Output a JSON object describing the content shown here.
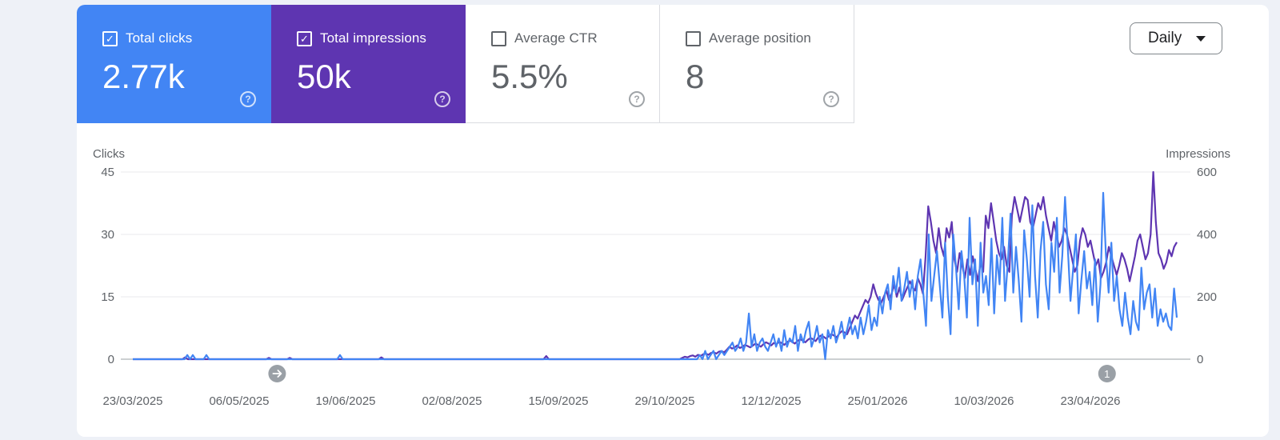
{
  "metrics": [
    {
      "label": "Total clicks",
      "value": "2.77k",
      "selected": true,
      "color": "#4285f4"
    },
    {
      "label": "Total impressions",
      "value": "50k",
      "selected": true,
      "color": "#5e35b1"
    },
    {
      "label": "Average CTR",
      "value": "5.5%",
      "selected": false
    },
    {
      "label": "Average position",
      "value": "8",
      "selected": false
    }
  ],
  "help_icon": "help-circle-icon",
  "granularity": {
    "label": "Daily",
    "icon": "caret-down-icon"
  },
  "markers": {
    "annotation_icon": "arrow-right-icon",
    "annotation_count": "1"
  },
  "chart_data": {
    "type": "line",
    "xlabel": "",
    "left_axis": {
      "label": "Clicks",
      "ticks": [
        45,
        30,
        15,
        0
      ],
      "ylim": [
        0,
        45
      ]
    },
    "right_axis": {
      "label": "Impressions",
      "ticks": [
        600,
        400,
        200,
        0
      ],
      "ylim": [
        0,
        600
      ]
    },
    "x_tick_labels": [
      "23/03/2025",
      "06/05/2025",
      "19/06/2025",
      "02/08/2025",
      "15/09/2025",
      "29/10/2025",
      "12/12/2025",
      "25/01/2026",
      "10/03/2026",
      "23/04/2026"
    ],
    "x_start": "2025-03-23",
    "x_end": "2026-05-31",
    "grid": true,
    "series": [
      {
        "name": "Clicks",
        "color": "#4285f4",
        "axis": "left",
        "values": [
          0,
          0,
          0,
          0,
          0,
          0,
          0,
          0,
          0,
          0,
          0,
          0,
          0,
          0,
          0,
          0,
          0,
          0,
          0,
          0,
          1,
          0,
          1,
          0,
          0,
          0,
          0,
          1,
          0,
          0,
          0,
          0,
          0,
          0,
          0,
          0,
          0,
          0,
          0,
          0,
          0,
          0,
          0,
          0,
          0,
          0,
          0,
          0,
          0,
          0,
          0,
          0,
          0,
          0,
          0,
          0,
          0,
          0,
          0,
          0,
          0,
          0,
          0,
          0,
          0,
          0,
          0,
          0,
          0,
          0,
          0,
          0,
          0,
          0,
          0,
          0,
          1,
          0,
          0,
          0,
          0,
          0,
          0,
          0,
          0,
          0,
          0,
          0,
          0,
          0,
          0,
          0,
          0,
          0,
          0,
          0,
          0,
          0,
          0,
          0,
          0,
          0,
          0,
          0,
          0,
          0,
          0,
          0,
          0,
          0,
          0,
          0,
          0,
          0,
          0,
          0,
          0,
          0,
          0,
          0,
          0,
          0,
          0,
          0,
          0,
          0,
          0,
          0,
          0,
          0,
          0,
          0,
          0,
          0,
          0,
          0,
          0,
          0,
          0,
          0,
          0,
          0,
          0,
          0,
          0,
          0,
          0,
          0,
          0,
          0,
          0,
          0,
          0,
          0,
          0,
          0,
          0,
          0,
          0,
          0,
          0,
          0,
          0,
          0,
          0,
          0,
          0,
          0,
          0,
          0,
          0,
          0,
          0,
          0,
          0,
          0,
          0,
          0,
          0,
          0,
          0,
          0,
          0,
          0,
          0,
          0,
          0,
          0,
          0,
          0,
          0,
          0,
          0,
          0,
          0,
          0,
          0,
          0,
          0,
          0,
          0,
          0,
          0,
          0,
          0,
          0,
          0,
          0,
          1,
          0,
          2,
          0,
          1,
          2,
          0,
          1,
          2,
          1,
          2,
          3,
          4,
          2,
          3,
          5,
          2,
          4,
          11,
          3,
          6,
          2,
          4,
          5,
          3,
          2,
          4,
          6,
          3,
          5,
          2,
          7,
          3,
          5,
          4,
          8,
          2,
          6,
          4,
          7,
          9,
          3,
          5,
          8,
          4,
          6,
          0,
          7,
          5,
          8,
          4,
          6,
          9,
          5,
          7,
          10,
          6,
          8,
          5,
          10,
          6,
          9,
          13,
          7,
          10,
          8,
          15,
          11,
          16,
          18,
          12,
          20,
          16,
          22,
          14,
          17,
          21,
          15,
          19,
          12,
          20,
          24,
          16,
          8,
          30,
          14,
          20,
          26,
          18,
          10,
          28,
          15,
          6,
          30,
          22,
          12,
          26,
          20,
          10,
          34,
          18,
          24,
          8,
          28,
          16,
          20,
          13,
          29,
          11,
          25,
          18,
          34,
          14,
          23,
          35,
          16,
          27,
          19,
          9,
          31,
          24,
          15,
          37,
          20,
          10,
          26,
          33,
          18,
          12,
          28,
          21,
          34,
          16,
          25,
          39,
          27,
          14,
          22,
          30,
          11,
          19,
          26,
          17,
          21,
          13,
          24,
          9,
          18,
          40,
          25,
          16,
          28,
          14,
          20,
          12,
          8,
          16,
          10,
          6,
          14,
          9,
          7,
          22,
          12,
          16,
          18,
          10,
          17,
          8,
          12,
          9,
          11,
          8,
          7,
          17,
          10
        ]
      },
      {
        "name": "Impressions",
        "color": "#5e35b1",
        "axis": "right",
        "values": [
          0,
          0,
          0,
          0,
          0,
          0,
          0,
          0,
          0,
          0,
          0,
          0,
          0,
          0,
          0,
          0,
          0,
          0,
          0,
          0,
          6,
          0,
          0,
          0,
          0,
          0,
          0,
          0,
          0,
          0,
          0,
          0,
          0,
          0,
          0,
          0,
          0,
          0,
          0,
          0,
          0,
          0,
          0,
          0,
          0,
          0,
          0,
          0,
          0,
          0,
          0,
          0,
          4,
          0,
          0,
          0,
          0,
          0,
          0,
          0,
          4,
          0,
          0,
          0,
          0,
          0,
          0,
          0,
          0,
          0,
          0,
          0,
          0,
          0,
          0,
          0,
          0,
          0,
          0,
          0,
          0,
          0,
          0,
          0,
          0,
          0,
          0,
          0,
          0,
          0,
          0,
          0,
          0,
          0,
          0,
          6,
          0,
          0,
          0,
          0,
          0,
          0,
          0,
          0,
          0,
          0,
          0,
          0,
          0,
          0,
          0,
          0,
          0,
          0,
          0,
          0,
          0,
          0,
          0,
          0,
          0,
          0,
          0,
          0,
          0,
          0,
          0,
          0,
          0,
          0,
          0,
          0,
          0,
          0,
          0,
          0,
          0,
          0,
          0,
          0,
          0,
          0,
          0,
          0,
          0,
          0,
          0,
          0,
          0,
          0,
          0,
          0,
          0,
          0,
          0,
          0,
          0,
          0,
          10,
          0,
          0,
          0,
          0,
          0,
          0,
          0,
          0,
          0,
          0,
          0,
          0,
          0,
          0,
          0,
          0,
          0,
          0,
          0,
          0,
          0,
          0,
          0,
          0,
          0,
          0,
          0,
          0,
          0,
          0,
          0,
          0,
          0,
          0,
          0,
          0,
          0,
          0,
          0,
          0,
          0,
          0,
          0,
          0,
          0,
          0,
          0,
          0,
          0,
          0,
          0,
          4,
          8,
          6,
          10,
          12,
          8,
          14,
          10,
          16,
          18,
          14,
          20,
          22,
          18,
          24,
          26,
          22,
          30,
          40,
          34,
          38,
          44,
          36,
          40,
          46,
          42,
          38,
          44,
          50,
          46,
          40,
          48,
          54,
          50,
          44,
          52,
          48,
          56,
          52,
          46,
          54,
          60,
          56,
          50,
          58,
          64,
          60,
          54,
          62,
          68,
          64,
          58,
          70,
          76,
          72,
          66,
          74,
          80,
          76,
          70,
          82,
          90,
          86,
          80,
          100,
          120,
          140,
          130,
          150,
          170,
          190,
          180,
          200,
          240,
          210,
          190,
          180,
          200,
          220,
          190,
          210,
          240,
          200,
          230,
          190,
          210,
          230,
          250,
          230,
          220,
          260,
          240,
          210,
          330,
          490,
          440,
          380,
          340,
          420,
          360,
          330,
          420,
          390,
          440,
          320,
          280,
          340,
          300,
          260,
          320,
          270,
          330,
          290,
          250,
          310,
          280,
          460,
          420,
          500,
          440,
          380,
          340,
          320,
          360,
          300,
          280,
          460,
          520,
          480,
          440,
          480,
          520,
          510,
          440,
          420,
          460,
          500,
          480,
          520,
          460,
          420,
          380,
          440,
          400,
          360,
          380,
          420,
          400,
          360,
          320,
          280,
          300,
          380,
          420,
          400,
          360,
          380,
          340,
          300,
          320,
          260,
          280,
          310,
          360,
          330,
          300,
          270,
          300,
          340,
          320,
          290,
          250,
          290,
          330,
          380,
          400,
          360,
          320,
          340,
          400,
          600,
          440,
          340,
          320,
          290,
          310,
          350,
          330,
          360,
          375
        ]
      }
    ],
    "markers": [
      {
        "date": "2025-05-22",
        "label": "",
        "icon": "arrow-right-icon"
      },
      {
        "date": "2026-05-02",
        "label": "1"
      }
    ]
  }
}
